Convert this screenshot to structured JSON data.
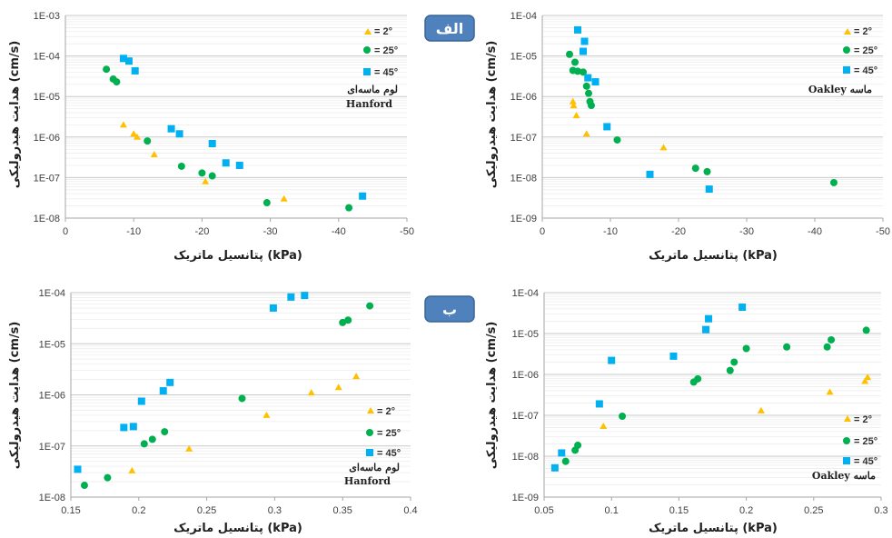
{
  "legend": {
    "s2": "= 2°",
    "s25": "= 25°",
    "s45": "= 45°"
  },
  "colors": {
    "s2": "#FFC000",
    "s25": "#00B050",
    "s45": "#00B0F0",
    "grid": "#D9D9D9",
    "badge": "#4F81BD"
  },
  "ylabel": "هدایت هیدرولیکی (cm/s)",
  "badges": {
    "top": "الف",
    "bottom": "ب"
  },
  "panels": [
    {
      "id": "top-left",
      "annotation": [
        "لوم ماسه‌ای",
        "Hanford"
      ],
      "xlabel": "پتانسیل ماتریک (kPa)",
      "chart_data": {
        "type": "scatter",
        "x_ticks": [
          "0",
          "-10",
          "-20",
          "-30",
          "-40",
          "-50"
        ],
        "y_ticks": [
          "1E-03",
          "1E-04",
          "1E-05",
          "1E-06",
          "1E-07",
          "1E-08"
        ],
        "xlim": [
          0,
          -50
        ],
        "ylim": [
          1e-08,
          0.001
        ],
        "ylog": true,
        "series": [
          {
            "name": "= 2°",
            "points": [
              [
                -8.5,
                2e-06
              ],
              [
                -10,
                1.2e-06
              ],
              [
                -10.5,
                1e-06
              ],
              [
                -13,
                3.7e-07
              ],
              [
                -20.5,
                8e-08
              ],
              [
                -32,
                3e-08
              ]
            ]
          },
          {
            "name": "= 25°",
            "points": [
              [
                -6,
                4.7e-05
              ],
              [
                -7,
                2.7e-05
              ],
              [
                -7.5,
                2.3e-05
              ],
              [
                -12,
                8e-07
              ],
              [
                -17,
                1.9e-07
              ],
              [
                -20,
                1.3e-07
              ],
              [
                -21.5,
                1.1e-07
              ],
              [
                -29.5,
                2.4e-08
              ],
              [
                -41.5,
                1.8e-08
              ]
            ]
          },
          {
            "name": "= 45°",
            "points": [
              [
                -8.5,
                8.7e-05
              ],
              [
                -9.3,
                7.5e-05
              ],
              [
                -10.2,
                4.3e-05
              ],
              [
                -15.5,
                1.6e-06
              ],
              [
                -16.7,
                1.2e-06
              ],
              [
                -21.5,
                6.9e-07
              ],
              [
                -23.5,
                2.3e-07
              ],
              [
                -25.5,
                2e-07
              ],
              [
                -43.5,
                3.5e-08
              ]
            ]
          }
        ]
      }
    },
    {
      "id": "top-right",
      "annotation": [
        "Oakley ماسه"
      ],
      "xlabel": "پتانسیل ماتریک (kPa)",
      "chart_data": {
        "type": "scatter",
        "x_ticks": [
          "0",
          "-10",
          "-20",
          "-30",
          "-40",
          "-50"
        ],
        "y_ticks": [
          "1E-04",
          "1E-05",
          "1E-06",
          "1E-07",
          "1E-08",
          "1E-09"
        ],
        "xlim": [
          0,
          -50
        ],
        "ylim": [
          1e-09,
          0.0001
        ],
        "ylog": true,
        "series": [
          {
            "name": "= 2°",
            "points": [
              [
                -4.5,
                7.5e-07
              ],
              [
                -4.6,
                6e-07
              ],
              [
                -5,
                3.4e-07
              ],
              [
                -6.5,
                1.2e-07
              ],
              [
                -17.8,
                5.5e-08
              ]
            ]
          },
          {
            "name": "= 25°",
            "points": [
              [
                -4,
                1.1e-05
              ],
              [
                -4.8,
                7e-06
              ],
              [
                -4.5,
                4.4e-06
              ],
              [
                -5.2,
                4.2e-06
              ],
              [
                -6,
                4e-06
              ],
              [
                -6.5,
                1.8e-06
              ],
              [
                -6.8,
                1.2e-06
              ],
              [
                -7,
                7.5e-07
              ],
              [
                -7.2,
                6e-07
              ],
              [
                -11,
                8.5e-08
              ],
              [
                -22.5,
                1.7e-08
              ],
              [
                -24.2,
                1.4e-08
              ],
              [
                -42.8,
                7.5e-09
              ]
            ]
          },
          {
            "name": "= 45°",
            "points": [
              [
                -5.2,
                4.4e-05
              ],
              [
                -6.2,
                2.3e-05
              ],
              [
                -6,
                1.3e-05
              ],
              [
                -6.7,
                2.9e-06
              ],
              [
                -7.8,
                2.3e-06
              ],
              [
                -9.5,
                1.8e-07
              ],
              [
                -15.8,
                1.2e-08
              ],
              [
                -24.5,
                5.2e-09
              ]
            ]
          }
        ]
      }
    },
    {
      "id": "bottom-left",
      "annotation": [
        "لوم ماسه‌ای",
        "Hanford"
      ],
      "xlabel": "پتانسیل ماتریک (kPa)",
      "chart_data": {
        "type": "scatter",
        "x_ticks": [
          "0.15",
          "0.2",
          "0.25",
          "0.3",
          "0.35",
          "0.4"
        ],
        "y_ticks": [
          "1E-04",
          "1E-05",
          "1E-06",
          "1E-07",
          "1E-08"
        ],
        "xlim": [
          0.15,
          0.4
        ],
        "ylim": [
          1e-08,
          0.0001
        ],
        "ylog": true,
        "series": [
          {
            "name": "= 2°",
            "points": [
              [
                0.195,
                3.3e-08
              ],
              [
                0.237,
                8.8e-08
              ],
              [
                0.294,
                4e-07
              ],
              [
                0.327,
                1.1e-06
              ],
              [
                0.347,
                1.4e-06
              ],
              [
                0.36,
                2.3e-06
              ]
            ]
          },
          {
            "name": "= 25°",
            "points": [
              [
                0.16,
                1.7e-08
              ],
              [
                0.177,
                2.4e-08
              ],
              [
                0.204,
                1.1e-07
              ],
              [
                0.21,
                1.35e-07
              ],
              [
                0.219,
                1.9e-07
              ],
              [
                0.276,
                8.5e-07
              ],
              [
                0.35,
                2.6e-05
              ],
              [
                0.354,
                2.9e-05
              ],
              [
                0.37,
                5.5e-05
              ]
            ]
          },
          {
            "name": "= 45°",
            "points": [
              [
                0.155,
                3.5e-08
              ],
              [
                0.189,
                2.3e-07
              ],
              [
                0.196,
                2.4e-07
              ],
              [
                0.202,
                7.5e-07
              ],
              [
                0.218,
                1.2e-06
              ],
              [
                0.223,
                1.75e-06
              ],
              [
                0.299,
                5e-05
              ],
              [
                0.312,
                8.2e-05
              ],
              [
                0.322,
                8.8e-05
              ]
            ]
          }
        ]
      }
    },
    {
      "id": "bottom-right",
      "annotation": [
        "Oakley ماسه"
      ],
      "xlabel": "پتانسیل ماتریک (kPa)",
      "chart_data": {
        "type": "scatter",
        "x_ticks": [
          "0.05",
          "0.1",
          "0.15",
          "0.2",
          "0.25",
          "0.3"
        ],
        "y_ticks": [
          "1E-04",
          "1E-05",
          "1E-06",
          "1E-07",
          "1E-08",
          "1E-09"
        ],
        "xlim": [
          0.05,
          0.3
        ],
        "ylim": [
          1e-09,
          0.0001
        ],
        "ylog": true,
        "series": [
          {
            "name": "= 2°",
            "points": [
              [
                0.094,
                5.4e-08
              ],
              [
                0.211,
                1.3e-07
              ],
              [
                0.262,
                3.7e-07
              ],
              [
                0.288,
                6.8e-07
              ],
              [
                0.29,
                8.5e-07
              ]
            ]
          },
          {
            "name": "= 25°",
            "points": [
              [
                0.066,
                7.5e-09
              ],
              [
                0.073,
                1.4e-08
              ],
              [
                0.075,
                1.85e-08
              ],
              [
                0.108,
                9.5e-08
              ],
              [
                0.161,
                6.5e-07
              ],
              [
                0.164,
                7.8e-07
              ],
              [
                0.188,
                1.25e-06
              ],
              [
                0.191,
                2e-06
              ],
              [
                0.2,
                4.3e-06
              ],
              [
                0.23,
                4.7e-06
              ],
              [
                0.26,
                4.7e-06
              ],
              [
                0.263,
                7e-06
              ],
              [
                0.289,
                1.2e-05
              ]
            ]
          },
          {
            "name": "= 45°",
            "points": [
              [
                0.058,
                5.2e-09
              ],
              [
                0.063,
                1.2e-08
              ],
              [
                0.091,
                1.9e-07
              ],
              [
                0.1,
                2.2e-06
              ],
              [
                0.146,
                2.8e-06
              ],
              [
                0.17,
                1.25e-05
              ],
              [
                0.172,
                2.3e-05
              ],
              [
                0.197,
                4.4e-05
              ]
            ]
          }
        ]
      }
    }
  ]
}
